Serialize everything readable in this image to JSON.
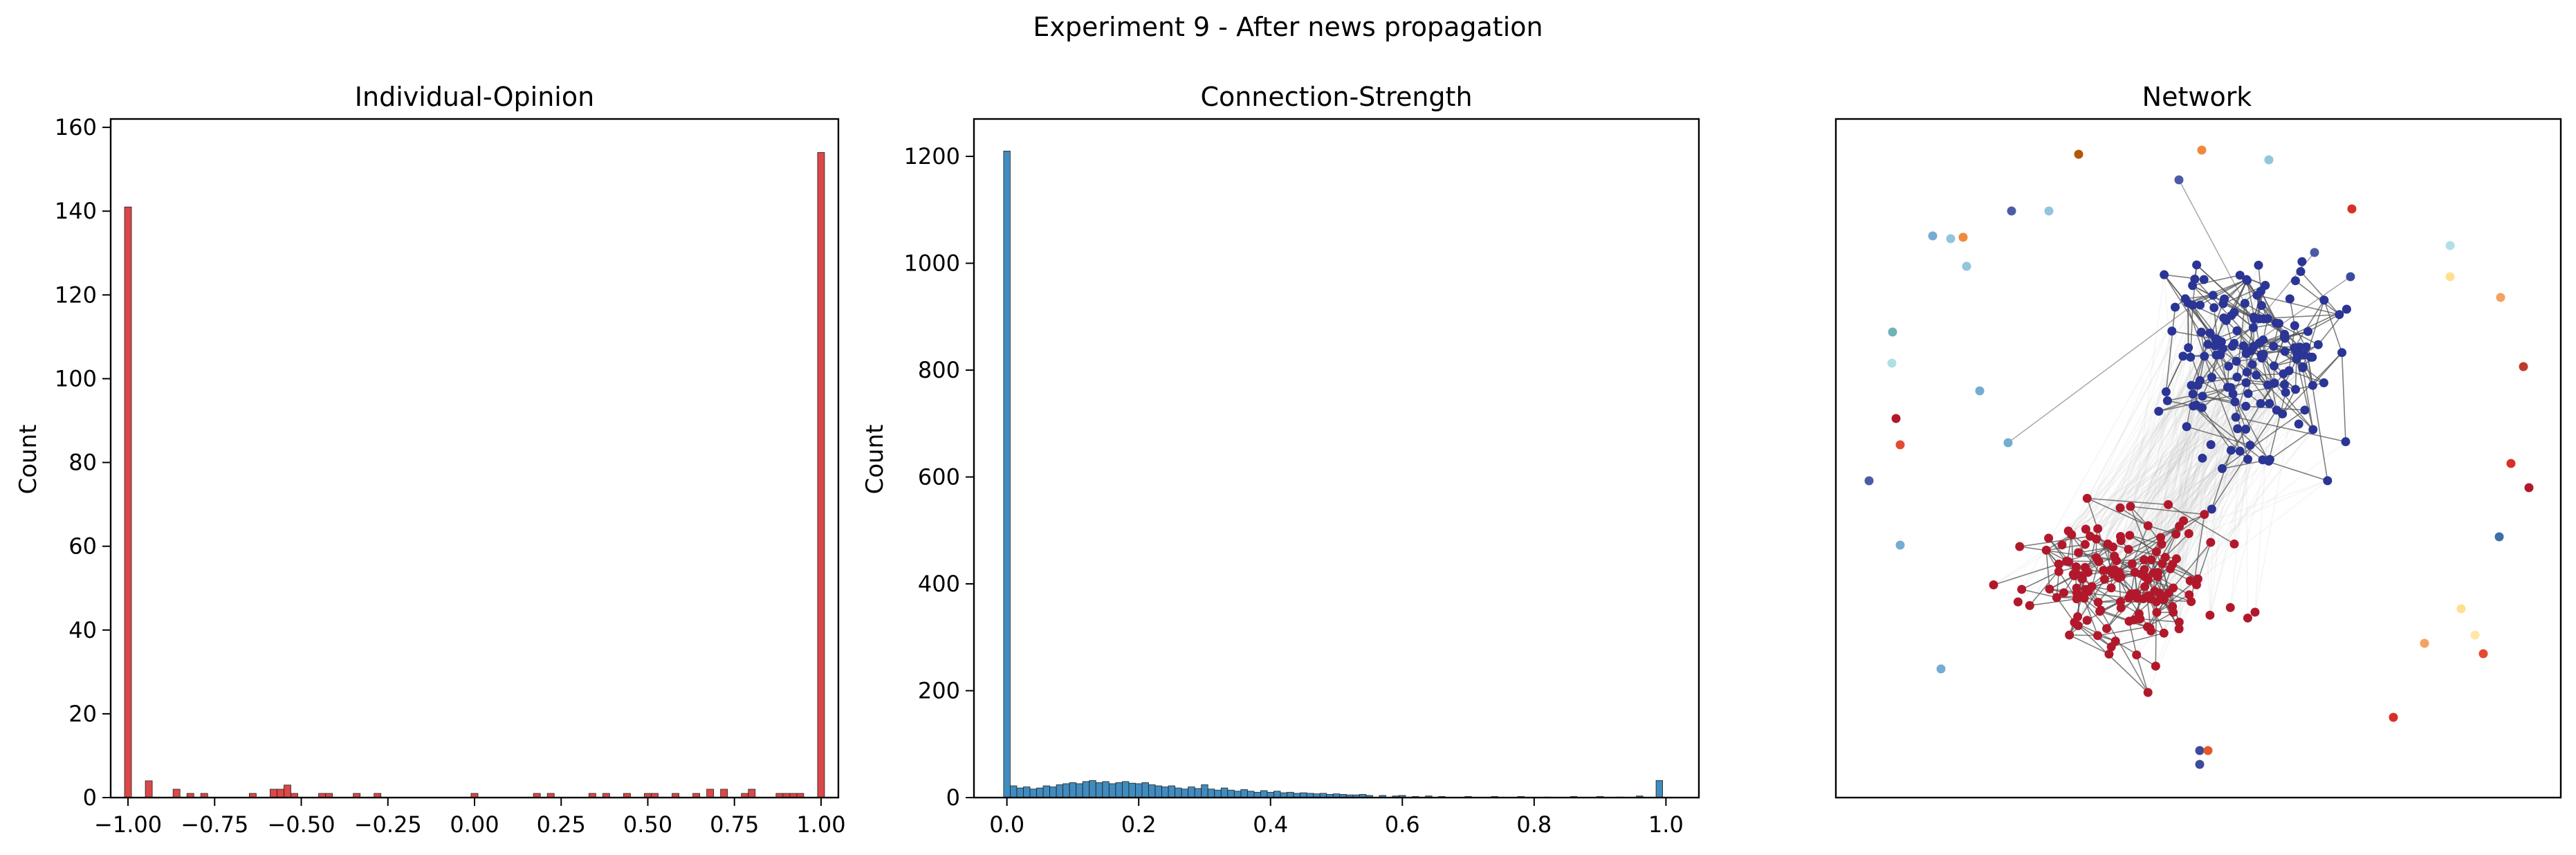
{
  "figure": {
    "suptitle": "Experiment 9 - After news propagation"
  },
  "chart_data": [
    {
      "type": "bar",
      "title": "Individual-Opinion",
      "xlabel": "",
      "ylabel": "Count",
      "xlim": [
        -1.05,
        1.05
      ],
      "ylim": [
        0,
        162
      ],
      "xticks": [
        -1.0,
        -0.75,
        -0.5,
        -0.25,
        0.0,
        0.25,
        0.5,
        0.75,
        1.0
      ],
      "xtick_labels": [
        "−1.00",
        "−0.75",
        "−0.50",
        "−0.25",
        "0.00",
        "0.25",
        "0.50",
        "0.75",
        "1.00"
      ],
      "yticks": [
        0,
        20,
        40,
        60,
        80,
        100,
        120,
        140,
        160
      ],
      "ytick_labels": [
        "0",
        "20",
        "40",
        "60",
        "80",
        "100",
        "120",
        "140",
        "160"
      ],
      "bin_width": 0.02,
      "color": "#d62728",
      "bins_x": [
        -1.0,
        -0.94,
        -0.86,
        -0.82,
        -0.78,
        -0.64,
        -0.58,
        -0.56,
        -0.54,
        -0.52,
        -0.44,
        -0.42,
        -0.34,
        -0.28,
        0.0,
        0.18,
        0.22,
        0.34,
        0.38,
        0.44,
        0.5,
        0.52,
        0.58,
        0.64,
        0.68,
        0.72,
        0.78,
        0.8,
        0.88,
        0.9,
        0.92,
        0.94,
        1.0
      ],
      "values": [
        141,
        4,
        2,
        1,
        1,
        1,
        2,
        2,
        3,
        1,
        1,
        1,
        1,
        1,
        1,
        1,
        1,
        1,
        1,
        1,
        1,
        1,
        1,
        1,
        2,
        2,
        1,
        2,
        1,
        1,
        1,
        1,
        154
      ]
    },
    {
      "type": "bar",
      "title": "Connection-Strength",
      "xlabel": "",
      "ylabel": "Count",
      "xlim": [
        -0.05,
        1.05
      ],
      "ylim": [
        0,
        1270
      ],
      "xticks": [
        0.0,
        0.2,
        0.4,
        0.6,
        0.8,
        1.0
      ],
      "xtick_labels": [
        "0.0",
        "0.2",
        "0.4",
        "0.6",
        "0.8",
        "1.0"
      ],
      "yticks": [
        0,
        200,
        400,
        600,
        800,
        1000,
        1200
      ],
      "ytick_labels": [
        "0",
        "200",
        "400",
        "600",
        "800",
        "1000",
        "1200"
      ],
      "bin_width": 0.01,
      "color": "#1f77b4",
      "bins_x": [
        0.0,
        0.01,
        0.02,
        0.03,
        0.04,
        0.05,
        0.06,
        0.07,
        0.08,
        0.09,
        0.1,
        0.11,
        0.12,
        0.13,
        0.14,
        0.15,
        0.16,
        0.17,
        0.18,
        0.19,
        0.2,
        0.21,
        0.22,
        0.23,
        0.24,
        0.25,
        0.26,
        0.27,
        0.28,
        0.29,
        0.3,
        0.31,
        0.32,
        0.33,
        0.34,
        0.35,
        0.36,
        0.37,
        0.38,
        0.39,
        0.4,
        0.41,
        0.42,
        0.43,
        0.44,
        0.45,
        0.46,
        0.47,
        0.48,
        0.49,
        0.5,
        0.51,
        0.52,
        0.53,
        0.54,
        0.55,
        0.57,
        0.59,
        0.6,
        0.62,
        0.64,
        0.66,
        0.7,
        0.74,
        0.78,
        0.82,
        0.86,
        0.9,
        0.93,
        0.96,
        0.99
      ],
      "values": [
        1210,
        22,
        18,
        20,
        16,
        18,
        22,
        20,
        24,
        26,
        28,
        26,
        30,
        32,
        28,
        30,
        26,
        28,
        30,
        27,
        26,
        28,
        24,
        22,
        20,
        22,
        18,
        16,
        20,
        17,
        24,
        16,
        14,
        18,
        14,
        12,
        15,
        12,
        10,
        13,
        10,
        12,
        9,
        10,
        8,
        9,
        8,
        7,
        8,
        6,
        7,
        6,
        5,
        5,
        6,
        4,
        4,
        3,
        4,
        2,
        3,
        2,
        2,
        2,
        2,
        1,
        2,
        2,
        1,
        3,
        32
      ]
    },
    {
      "type": "network",
      "title": "Network",
      "node_colors": {
        "left_cluster": "#b2182b",
        "right_cluster": "#2b3595"
      },
      "edge_color": "#555555"
    }
  ]
}
